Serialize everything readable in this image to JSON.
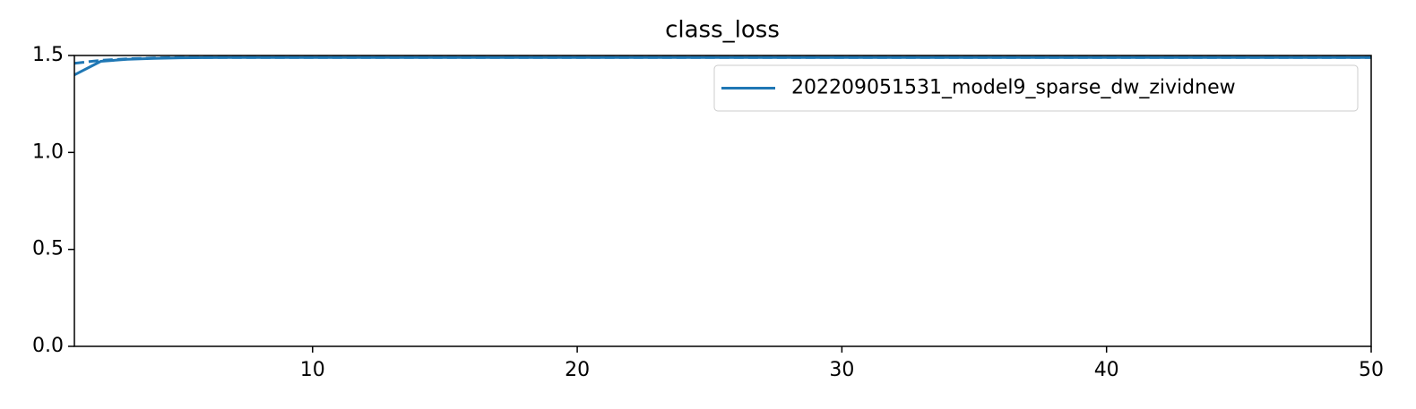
{
  "chart_data": {
    "type": "line",
    "title": "class_loss",
    "x": [
      1,
      2,
      3,
      4,
      5,
      6,
      7,
      8,
      9,
      10,
      11,
      12,
      13,
      14,
      15,
      16,
      17,
      18,
      19,
      20,
      21,
      22,
      23,
      24,
      25,
      26,
      27,
      28,
      29,
      30,
      31,
      32,
      33,
      34,
      35,
      36,
      37,
      38,
      39,
      40,
      41,
      42,
      43,
      44,
      45,
      46,
      47,
      48,
      49,
      50
    ],
    "series": [
      {
        "name": "202209051531_model9_sparse_dw_zividnew",
        "color": "#1f77b4",
        "dash": false,
        "values": [
          1.4,
          1.47,
          1.48,
          1.485,
          1.488,
          1.489,
          1.49,
          1.49,
          1.49,
          1.49,
          1.49,
          1.49,
          1.49,
          1.49,
          1.49,
          1.49,
          1.49,
          1.49,
          1.49,
          1.49,
          1.49,
          1.49,
          1.49,
          1.49,
          1.49,
          1.49,
          1.49,
          1.49,
          1.49,
          1.49,
          1.49,
          1.49,
          1.49,
          1.49,
          1.49,
          1.49,
          1.49,
          1.49,
          1.49,
          1.49,
          1.49,
          1.49,
          1.49,
          1.49,
          1.49,
          1.49,
          1.49,
          1.49,
          1.49,
          1.49
        ]
      },
      {
        "color": "#1f77b4",
        "dash": true,
        "values": [
          1.46,
          1.475,
          1.483,
          1.487,
          1.49,
          1.49,
          1.49,
          1.49,
          1.49,
          1.49,
          1.49,
          1.49,
          1.49,
          1.49,
          1.49,
          1.49,
          1.49,
          1.49,
          1.49,
          1.49,
          1.49,
          1.49,
          1.49,
          1.49,
          1.49,
          1.49,
          1.49,
          1.49,
          1.49,
          1.49,
          1.49,
          1.49,
          1.49,
          1.49,
          1.49,
          1.49,
          1.49,
          1.49,
          1.49,
          1.49,
          1.49,
          1.49,
          1.49,
          1.49,
          1.49,
          1.49,
          1.49,
          1.49,
          1.49,
          1.49
        ]
      }
    ],
    "xlim": [
      1,
      50
    ],
    "xticks": [
      10,
      20,
      30,
      40,
      50
    ],
    "ylim": [
      0,
      1.5
    ],
    "yticks": [
      {
        "value": 0,
        "label": "0.0"
      },
      0.5,
      {
        "value": 1,
        "label": "1.0"
      },
      1.5
    ],
    "grid": false,
    "legend": "upper right"
  }
}
